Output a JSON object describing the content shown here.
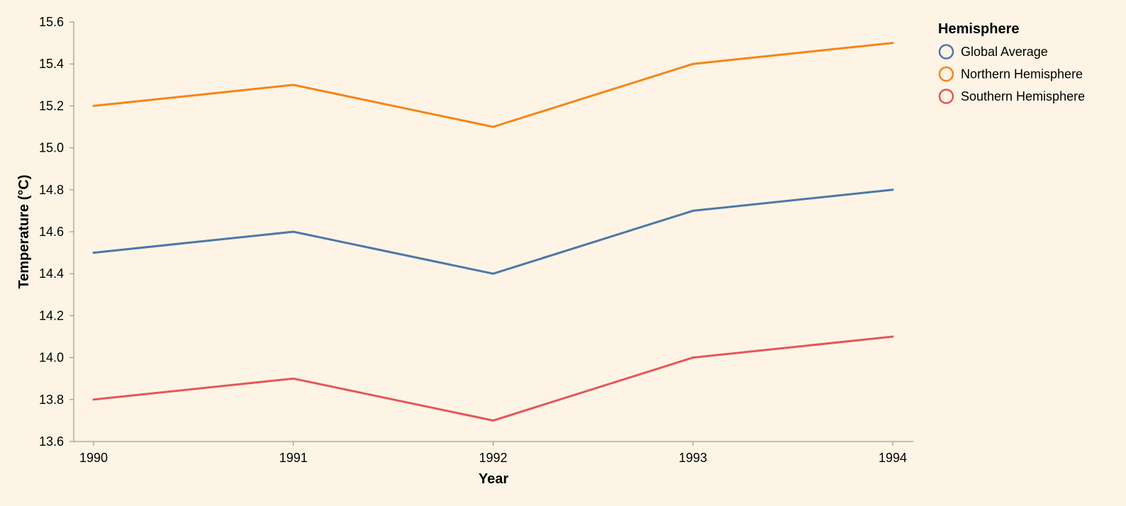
{
  "chart_data": {
    "type": "line",
    "x": [
      "1990",
      "1991",
      "1992",
      "1993",
      "1994"
    ],
    "series": [
      {
        "name": "Global Average",
        "color": "#4c78a8",
        "values": [
          14.5,
          14.6,
          14.4,
          14.7,
          14.8
        ]
      },
      {
        "name": "Northern Hemisphere",
        "color": "#f58518",
        "values": [
          15.2,
          15.3,
          15.1,
          15.4,
          15.5
        ]
      },
      {
        "name": "Southern Hemisphere",
        "color": "#e45756",
        "values": [
          13.8,
          13.9,
          13.7,
          14.0,
          14.1
        ]
      }
    ],
    "xlabel": "Year",
    "ylabel": "Temperature (°C)",
    "ylim": [
      13.6,
      15.6
    ],
    "yticks": [
      "13.6",
      "13.8",
      "14.0",
      "14.2",
      "14.4",
      "14.6",
      "14.8",
      "15.0",
      "15.2",
      "15.4",
      "15.6"
    ],
    "grid": false,
    "legend": {
      "title": "Hemisphere",
      "placement": "right"
    },
    "background": "#fdf4e6"
  }
}
